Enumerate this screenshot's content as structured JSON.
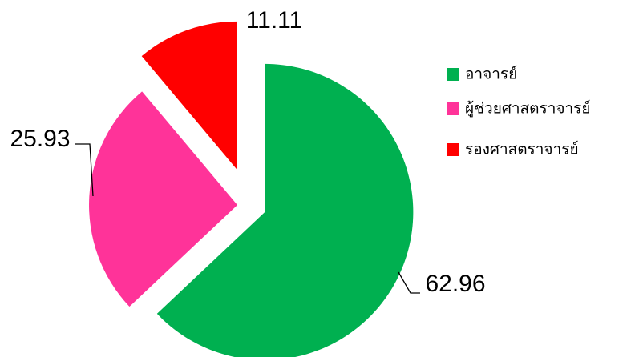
{
  "chart_data": {
    "type": "pie",
    "categories": [
      "อาจารย์",
      "ผู้ช่วยศาสตราจารย์",
      "รองศาสตราจารย์"
    ],
    "values": [
      62.96,
      25.93,
      11.11
    ],
    "colors": [
      "#00b050",
      "#ff3399",
      "#ff0000"
    ],
    "legend": "right"
  }
}
